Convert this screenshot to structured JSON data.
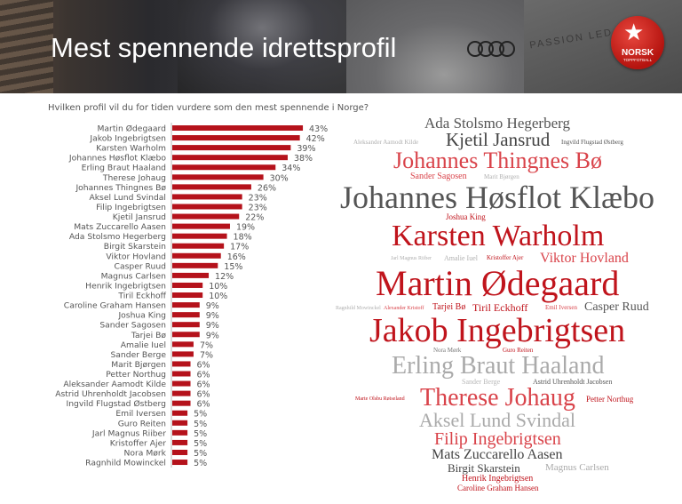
{
  "header": {
    "title": "Mest spennende idrettsprofil",
    "logo_text": "NORSK",
    "logo_subtext": "TOPPFOTBALL",
    "background_text": "PASSION LED"
  },
  "chart_data": {
    "type": "bar",
    "orientation": "horizontal",
    "title": "Hvilken profil vil du for tiden vurdere som den mest spennende i Norge?",
    "bar_color": "#b5121b",
    "value_suffix": "%",
    "categories": [
      "Martin Ødegaard",
      "Jakob Ingebrigtsen",
      "Karsten Warholm",
      "Johannes Høsflot Klæbo",
      "Erling Braut Haaland",
      "Therese Johaug",
      "Johannes Thingnes Bø",
      "Aksel Lund Svindal",
      "Filip Ingebrigtsen",
      "Kjetil Jansrud",
      "Mats Zuccarello Aasen",
      "Ada Stolsmo Hegerberg",
      "Birgit Skarstein",
      "Viktor Hovland",
      "Casper Ruud",
      "Magnus Carlsen",
      "Henrik Ingebrigtsen",
      "Tiril Eckhoff",
      "Caroline Graham Hansen",
      "Joshua King",
      "Sander Sagosen",
      "Tarjei Bø",
      "Amalie Iuel",
      "Sander Berge",
      "Marit Bjørgen",
      "Petter Northug",
      "Aleksander Aamodt Kilde",
      "Astrid Uhrenholdt Jacobsen",
      "Ingvild Flugstad Østberg",
      "Emil Iversen",
      "Guro Reiten",
      "Jarl Magnus Riiber",
      "Kristoffer Ajer",
      "Nora Mørk",
      "Ragnhild Mowinckel"
    ],
    "values": [
      43,
      42,
      39,
      38,
      34,
      30,
      26,
      23,
      23,
      22,
      19,
      18,
      17,
      16,
      15,
      12,
      10,
      10,
      9,
      9,
      9,
      9,
      7,
      7,
      6,
      6,
      6,
      6,
      6,
      5,
      5,
      5,
      5,
      5,
      5
    ],
    "xlim": [
      0,
      45
    ],
    "grid": false
  },
  "word_cloud": {
    "colors": {
      "dark_red": "#c0141c",
      "light_red": "#d9434a",
      "dark_gray": "#555555",
      "light_gray": "#aaaaaa"
    },
    "words": [
      {
        "text": "Ada Stolsmo Hegerberg",
        "color": "#555555"
      },
      {
        "text": "Kjetil Jansrud",
        "color": "#444444"
      },
      {
        "text": "Aleksander Aamodt Kilde",
        "color": "#b0b0b0"
      },
      {
        "text": "Ingvild Flugstad Østberg",
        "color": "#555555"
      },
      {
        "text": "Johannes Thingnes Bø",
        "color": "#d9434a"
      },
      {
        "text": "Sander Sagosen",
        "color": "#d9434a"
      },
      {
        "text": "Marit Bjørgen",
        "color": "#b0b0b0"
      },
      {
        "text": "Johannes Høsflot Klæbo",
        "color": "#555555"
      },
      {
        "text": "Joshua King",
        "color": "#c0141c"
      },
      {
        "text": "Karsten Warholm",
        "color": "#c0141c"
      },
      {
        "text": "Amalie Iuel",
        "color": "#b0b0b0"
      },
      {
        "text": "Jarl Magnus Riiber",
        "color": "#b0b0b0"
      },
      {
        "text": "Kristoffer Ajer",
        "color": "#c0141c"
      },
      {
        "text": "Viktor Hovland",
        "color": "#d9434a"
      },
      {
        "text": "Martin Ødegaard",
        "color": "#c0141c"
      },
      {
        "text": "Ragnhild Mowinckel",
        "color": "#b0b0b0"
      },
      {
        "text": "Alexander Kristoff",
        "color": "#d9434a"
      },
      {
        "text": "Tarjei Bø",
        "color": "#c0141c"
      },
      {
        "text": "Tiril Eckhoff",
        "color": "#c0141c"
      },
      {
        "text": "Emil Iversen",
        "color": "#d9434a"
      },
      {
        "text": "Casper Ruud",
        "color": "#555555"
      },
      {
        "text": "Jakob Ingebrigtsen",
        "color": "#c0141c"
      },
      {
        "text": "Nora Mørk",
        "color": "#777777"
      },
      {
        "text": "Guro Reiten",
        "color": "#c0141c"
      },
      {
        "text": "Erling Braut Haaland",
        "color": "#aaaaaa"
      },
      {
        "text": "Sander Berge",
        "color": "#b8b8b8"
      },
      {
        "text": "Astrid Uhrenholdt Jacobsen",
        "color": "#555555"
      },
      {
        "text": "Marte Olsbu Røiseland",
        "color": "#c0141c"
      },
      {
        "text": "Therese Johaug",
        "color": "#d9434a"
      },
      {
        "text": "Petter Northug",
        "color": "#c0141c"
      },
      {
        "text": "Aksel Lund Svindal",
        "color": "#aaaaaa"
      },
      {
        "text": "Filip Ingebrigtsen",
        "color": "#d9434a"
      },
      {
        "text": "Mats Zuccarello Aasen",
        "color": "#444444"
      },
      {
        "text": "Birgit Skarstein",
        "color": "#444444"
      },
      {
        "text": "Magnus Carlsen",
        "color": "#aaaaaa"
      },
      {
        "text": "Henrik Ingebrigtsen",
        "color": "#c0141c"
      },
      {
        "text": "Caroline Graham Hansen",
        "color": "#c0141c"
      }
    ]
  }
}
